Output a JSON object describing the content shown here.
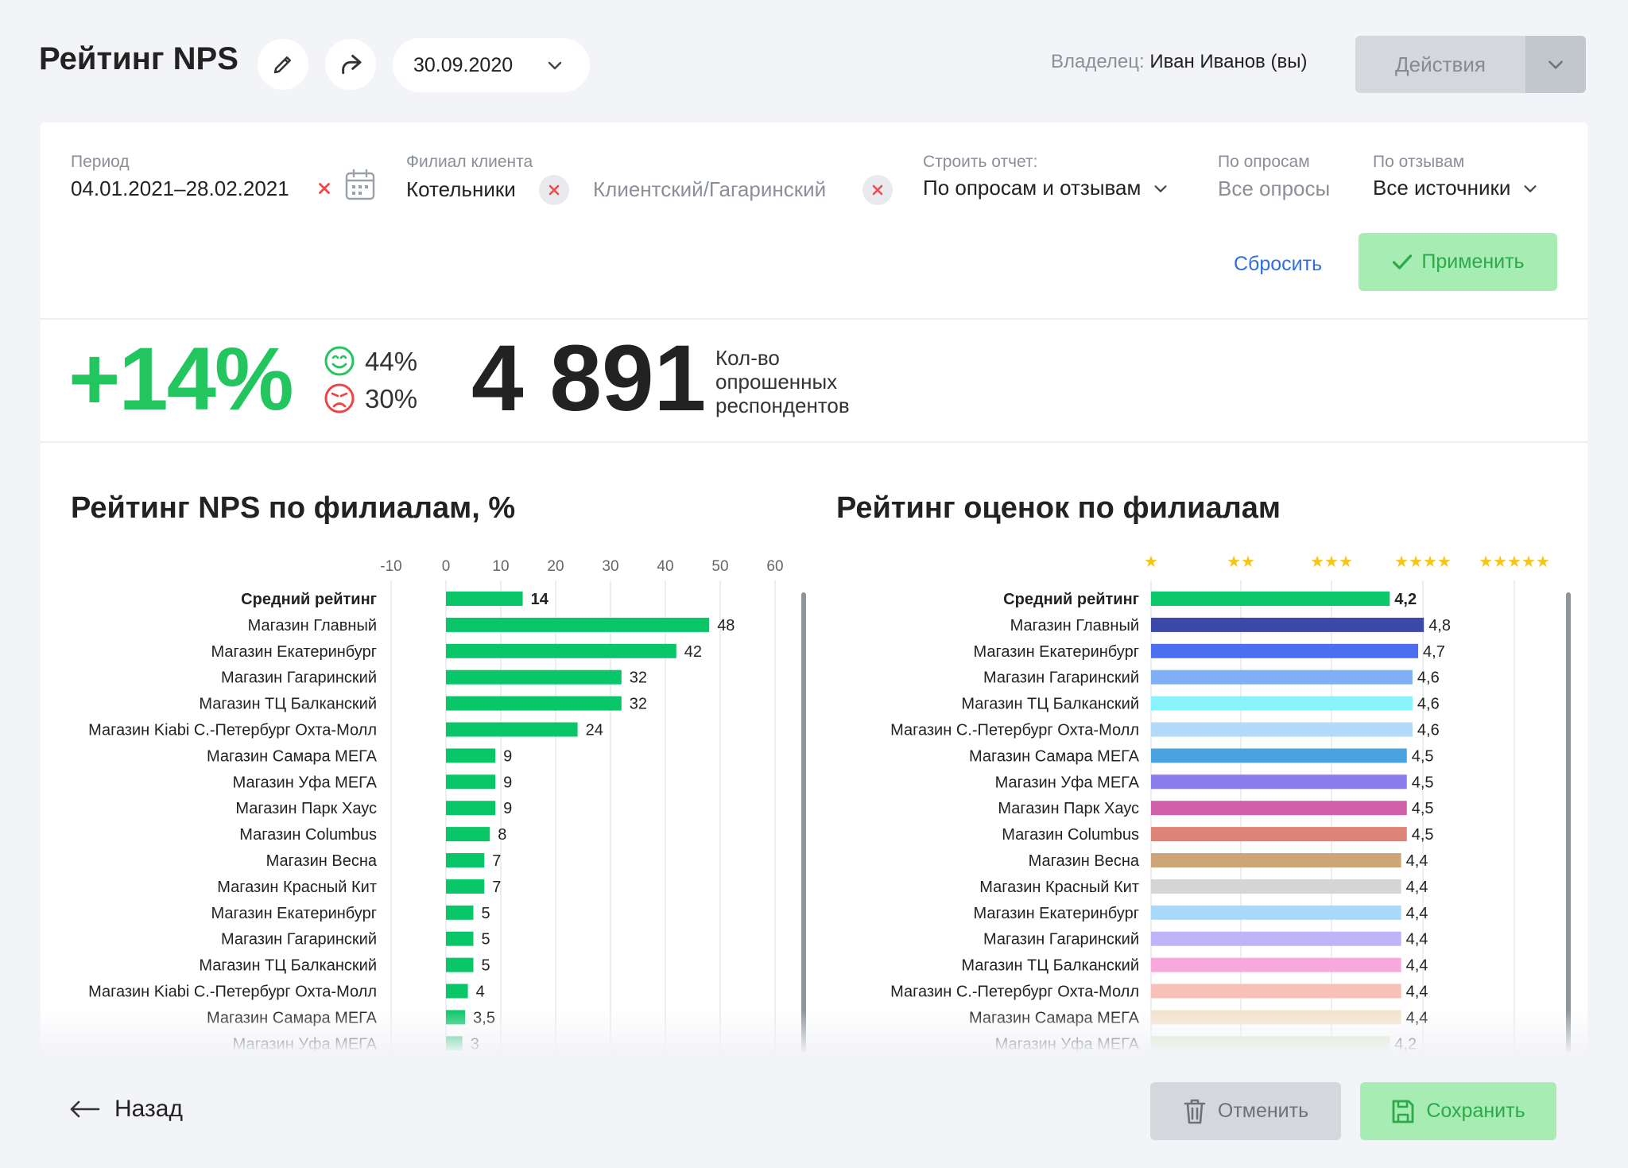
{
  "header": {
    "title": "Рейтинг NPS",
    "date": "30.09.2020",
    "owner_label": "Владелец:",
    "owner_name": "Иван Иванов (вы)",
    "actions_label": "Действия"
  },
  "filters": {
    "period": {
      "label": "Период",
      "value": "04.01.2021–28.02.2021"
    },
    "branch": {
      "label": "Филиал клиента",
      "chips": [
        "Котельники",
        "Клиентский/Гагаринский"
      ]
    },
    "build": {
      "label": "Строить отчет:",
      "value": "По опросам и отзывам"
    },
    "surveys": {
      "label": "По опросам",
      "value": "Все опросы"
    },
    "reviews": {
      "label": "По отзывам",
      "value": "Все источники"
    },
    "reset_label": "Сбросить",
    "apply_label": "Применить"
  },
  "summary": {
    "nps": "+14%",
    "promoters": "44%",
    "detractors": "30%",
    "respondents": "4 891",
    "respondents_label": "Кол-во опрошенных респондентов"
  },
  "footer": {
    "back_label": "Назад",
    "cancel_label": "Отменить",
    "save_label": "Сохранить"
  },
  "colors": {
    "accent_green": "#22c55e",
    "link_blue": "#2f6fe0",
    "apply_bg": "#a7ecb3"
  },
  "chart_data": [
    {
      "type": "bar",
      "orientation": "horizontal",
      "title": "Рейтинг NPS по филиалам, %",
      "xlim": [
        -10,
        60
      ],
      "xticks": [
        "-10",
        "0",
        "10",
        "20",
        "30",
        "40",
        "50",
        "60"
      ],
      "grid": true,
      "categories": [
        "Средний рейтинг",
        "Магазин Главный",
        "Магазин Екатеринбург",
        "Магазин Гагаринский",
        "Магазин ТЦ Балканский",
        "Магазин Kiabi С.-Петербург Охта-Молл",
        "Магазин Самара МЕГА",
        "Магазин Уфа МЕГА",
        "Магазин Парк Хаус",
        "Магазин Columbus",
        "Магазин Весна",
        "Магазин Красный Кит",
        "Магазин Екатеринбург",
        "Магазин Гагаринский",
        "Магазин ТЦ Балканский",
        "Магазин Kiabi С.-Петербург Охта-Молл",
        "Магазин Самара МЕГА",
        "Магазин Уфа МЕГА"
      ],
      "values": [
        14,
        48,
        42,
        32,
        32,
        24,
        9,
        9,
        9,
        8,
        7,
        7,
        5,
        5,
        5,
        4,
        3.5,
        3
      ],
      "value_labels": [
        "14",
        "48",
        "42",
        "32",
        "32",
        "24",
        "9",
        "9",
        "9",
        "8",
        "7",
        "7",
        "5",
        "5",
        "5",
        "4",
        "3,5",
        "3"
      ],
      "bar_color": "#09c768"
    },
    {
      "type": "bar",
      "orientation": "horizontal",
      "title": "Рейтинг оценок по филиалам",
      "xlim": [
        0,
        5
      ],
      "xticks": [
        "★",
        "★★",
        "★★★",
        "★★★★",
        "★★★★★"
      ],
      "grid": true,
      "categories": [
        "Средний рейтинг",
        "Магазин Главный",
        "Магазин Екатеринбург",
        "Магазин Гагаринский",
        "Магазин ТЦ Балканский",
        "Магазин С.-Петербург Охта-Молл",
        "Магазин Самара МЕГА",
        "Магазин Уфа МЕГА",
        "Магазин Парк Хаус",
        "Магазин Columbus",
        "Магазин Весна",
        "Магазин Красный Кит",
        "Магазин Екатеринбург",
        "Магазин Гагаринский",
        "Магазин ТЦ Балканский",
        "Магазин С.-Петербург Охта-Молл",
        "Магазин Самара МЕГА",
        "Магазин Уфа МЕГА"
      ],
      "values": [
        4.2,
        4.8,
        4.7,
        4.6,
        4.6,
        4.6,
        4.5,
        4.5,
        4.5,
        4.5,
        4.4,
        4.4,
        4.4,
        4.4,
        4.4,
        4.4,
        4.4,
        4.2
      ],
      "value_labels": [
        "4,2",
        "4,8",
        "4,7",
        "4,6",
        "4,6",
        "4,6",
        "4,5",
        "4,5",
        "4,5",
        "4,5",
        "4,4",
        "4,4",
        "4,4",
        "4,4",
        "4,4",
        "4,4",
        "4,4",
        "4,2"
      ],
      "colors": [
        "#0bc86a",
        "#3b4aa8",
        "#4b6ff0",
        "#7fb0f5",
        "#88f3fb",
        "#b3dafa",
        "#4aa2e0",
        "#8b7cee",
        "#d060a8",
        "#de8378",
        "#cda578",
        "#d5d5d5",
        "#aad8f8",
        "#c1b3f8",
        "#f8a8dc",
        "#f8c0b8",
        "#f3e3cd",
        "#d8e8b8"
      ],
      "star_color": "#f5c518"
    }
  ]
}
